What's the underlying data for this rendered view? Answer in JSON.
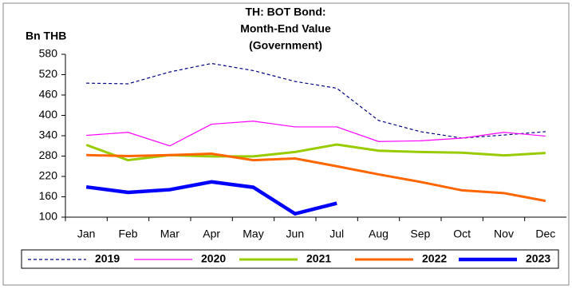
{
  "chart_data": {
    "type": "line",
    "title": [
      "TH: BOT Bond:",
      "Month-End Value",
      "(Government)"
    ],
    "y_label": "Bn THB",
    "categories": [
      "Jan",
      "Feb",
      "Mar",
      "Apr",
      "May",
      "Jun",
      "Jul",
      "Aug",
      "Sep",
      "Oct",
      "Nov",
      "Dec"
    ],
    "ylim": [
      100,
      580
    ],
    "yticks": [
      100,
      160,
      220,
      280,
      340,
      400,
      460,
      520,
      580
    ],
    "grid": false,
    "legend": "bottom",
    "series": [
      {
        "name": "2019",
        "color": "#000080",
        "dash": true,
        "width": 1.2,
        "values": [
          495,
          493,
          528,
          553,
          532,
          500,
          480,
          385,
          352,
          333,
          342,
          352
        ]
      },
      {
        "name": "2020",
        "color": "#ff00ff",
        "dash": false,
        "width": 1.2,
        "values": [
          341,
          350,
          310,
          374,
          383,
          366,
          366,
          323,
          325,
          333,
          350,
          339
        ]
      },
      {
        "name": "2021",
        "color": "#99cc00",
        "dash": false,
        "width": 3,
        "values": [
          313,
          268,
          283,
          279,
          279,
          292,
          314,
          296,
          292,
          290,
          282,
          289
        ]
      },
      {
        "name": "2022",
        "color": "#ff6600",
        "dash": false,
        "width": 3,
        "values": [
          283,
          280,
          283,
          287,
          268,
          273,
          250,
          226,
          204,
          179,
          171,
          148
        ]
      },
      {
        "name": "2023",
        "color": "#0000ff",
        "dash": false,
        "width": 4.5,
        "values": [
          189,
          173,
          181,
          204,
          188,
          110,
          141,
          null,
          null,
          null,
          null,
          null
        ]
      }
    ]
  }
}
